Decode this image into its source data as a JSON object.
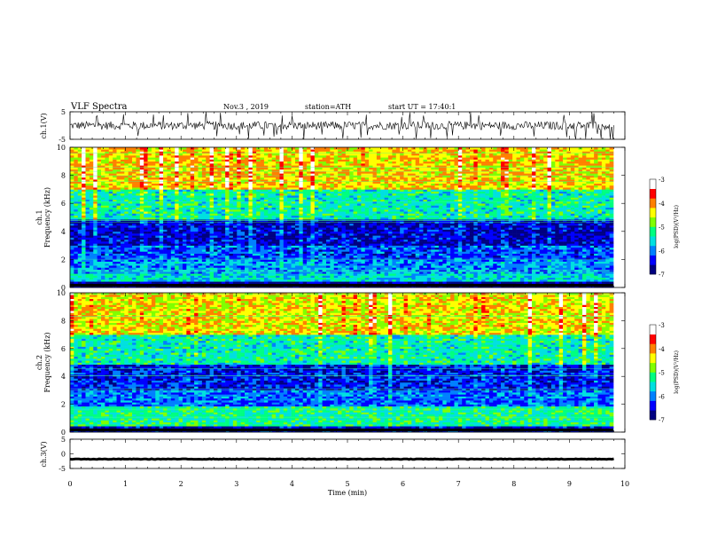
{
  "header": {
    "title": "VLF Spectra",
    "date": "Nov.3 , 2019",
    "station": "station=ATH",
    "start": "start UT = 17:40:1"
  },
  "x_axis": {
    "label": "Time (min)",
    "ticks": [
      "0",
      "1",
      "2",
      "3",
      "4",
      "5",
      "6",
      "7",
      "8",
      "9",
      "10"
    ]
  },
  "colors": {
    "trace": "#000000",
    "colormap": [
      "#000000",
      "#000080",
      "#0000ff",
      "#0080ff",
      "#00e0e0",
      "#00ff80",
      "#80ff00",
      "#ffff00",
      "#ff8000",
      "#ff0000",
      "#ffffff"
    ]
  },
  "chart_data": [
    {
      "type": "line",
      "name": "ch1-trace",
      "ylabel": "ch.1(V)",
      "ylim": [
        -5,
        5
      ],
      "xlim": [
        0,
        10
      ],
      "yticks": [
        "5",
        "-5"
      ],
      "description_values": {
        "baseline": 0,
        "noise_amplitude": 1.5
      }
    },
    {
      "type": "heatmap",
      "name": "ch1-spectrogram",
      "ylabel": "ch.1 Frequency (kHz)",
      "ylabel_line1": "ch.1",
      "ylabel_line2": "Frequency (kHz)",
      "xlim": [
        0,
        10
      ],
      "ylim": [
        0,
        10
      ],
      "yticks": [
        "0",
        "2",
        "4",
        "6",
        "8",
        "10"
      ],
      "colorbar": {
        "label": "log(PSD)(V²/Hz)",
        "range": [
          -7,
          -3
        ],
        "ticks": [
          "-3",
          "-4",
          "-5",
          "-6",
          "-7"
        ]
      },
      "bands": [
        {
          "from": 0.0,
          "to": 0.4,
          "level": -6.8
        },
        {
          "from": 0.4,
          "to": 1.0,
          "level": -5.6
        },
        {
          "from": 1.0,
          "to": 2.0,
          "level": -5.9
        },
        {
          "from": 2.0,
          "to": 3.0,
          "level": -6.2
        },
        {
          "from": 3.0,
          "to": 4.8,
          "level": -6.6
        },
        {
          "from": 4.8,
          "to": 7.0,
          "level": -5.4
        },
        {
          "from": 7.0,
          "to": 10.0,
          "level": -4.3
        }
      ]
    },
    {
      "type": "heatmap",
      "name": "ch2-spectrogram",
      "ylabel": "ch.2 Frequency (kHz)",
      "ylabel_line1": "ch.2",
      "ylabel_line2": "Frequency (kHz)",
      "xlim": [
        0,
        10
      ],
      "ylim": [
        0,
        10
      ],
      "yticks": [
        "0",
        "2",
        "4",
        "6",
        "8",
        "10"
      ],
      "colorbar": {
        "label": "log(PSD)(V²/Hz)",
        "range": [
          -7,
          -3
        ],
        "ticks": [
          "-3",
          "-4",
          "-5",
          "-6",
          "-7"
        ]
      },
      "bands": [
        {
          "from": 0.0,
          "to": 0.4,
          "level": -6.6
        },
        {
          "from": 0.4,
          "to": 1.8,
          "level": -5.3
        },
        {
          "from": 1.8,
          "to": 3.0,
          "level": -6.1
        },
        {
          "from": 3.0,
          "to": 4.8,
          "level": -6.4
        },
        {
          "from": 4.8,
          "to": 7.0,
          "level": -5.4
        },
        {
          "from": 7.0,
          "to": 10.0,
          "level": -4.4
        }
      ]
    },
    {
      "type": "line",
      "name": "ch3-trace",
      "ylabel": "ch.3(V)",
      "ylim": [
        -5,
        5
      ],
      "xlim": [
        0,
        10
      ],
      "yticks": [
        "5",
        "0",
        "-5"
      ],
      "description_values": {
        "baseline": -1.8,
        "noise_amplitude": 0.1
      }
    }
  ]
}
